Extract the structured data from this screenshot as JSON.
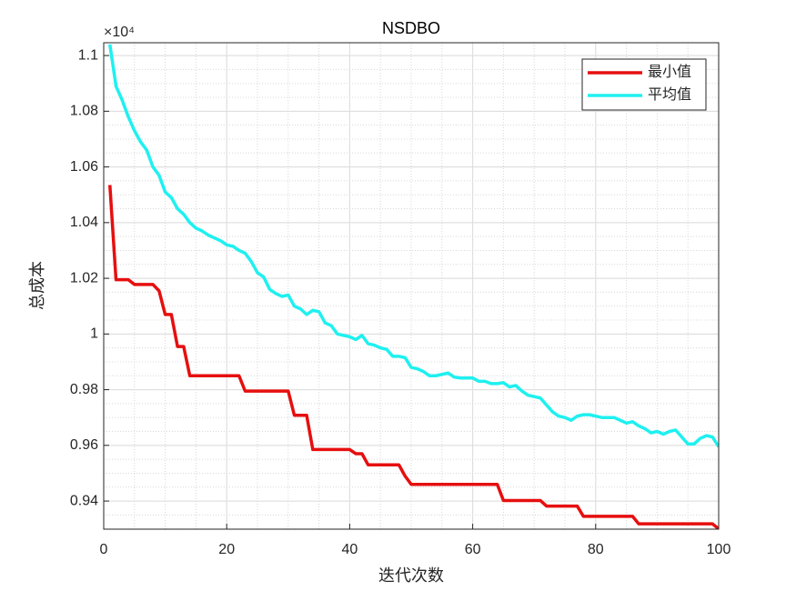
{
  "chart_data": {
    "type": "line",
    "title": "NSDBO",
    "xlabel": "迭代次数",
    "ylabel": "总成本",
    "y_multiplier": "×10⁴",
    "x": [
      1,
      2,
      3,
      4,
      5,
      6,
      7,
      8,
      9,
      10,
      11,
      12,
      13,
      14,
      15,
      16,
      17,
      18,
      19,
      20,
      21,
      22,
      23,
      24,
      25,
      26,
      27,
      28,
      29,
      30,
      31,
      32,
      33,
      34,
      35,
      36,
      37,
      38,
      39,
      40,
      41,
      42,
      43,
      44,
      45,
      46,
      47,
      48,
      49,
      50,
      51,
      52,
      53,
      54,
      55,
      56,
      57,
      58,
      59,
      60,
      61,
      62,
      63,
      64,
      65,
      66,
      67,
      68,
      69,
      70,
      71,
      72,
      73,
      74,
      75,
      76,
      77,
      78,
      79,
      80,
      81,
      82,
      83,
      84,
      85,
      86,
      87,
      88,
      89,
      90,
      91,
      92,
      93,
      94,
      95,
      96,
      97,
      98,
      99,
      100
    ],
    "series": [
      {
        "name": "最小值",
        "color": "#e60f0f",
        "values": [
          10535,
          10195,
          10195,
          10195,
          10178,
          10178,
          10178,
          10178,
          10155,
          10070,
          10070,
          9955,
          9955,
          9850,
          9850,
          9850,
          9850,
          9850,
          9850,
          9850,
          9850,
          9850,
          9795,
          9795,
          9795,
          9795,
          9795,
          9795,
          9795,
          9795,
          9708,
          9708,
          9708,
          9585,
          9585,
          9585,
          9585,
          9585,
          9585,
          9585,
          9570,
          9570,
          9530,
          9530,
          9530,
          9530,
          9530,
          9530,
          9490,
          9460,
          9460,
          9460,
          9460,
          9460,
          9460,
          9460,
          9460,
          9460,
          9460,
          9460,
          9460,
          9460,
          9460,
          9460,
          9402,
          9402,
          9402,
          9402,
          9402,
          9402,
          9402,
          9382,
          9382,
          9382,
          9382,
          9382,
          9382,
          9345,
          9345,
          9345,
          9345,
          9345,
          9345,
          9345,
          9345,
          9345,
          9318,
          9318,
          9318,
          9318,
          9318,
          9318,
          9318,
          9318,
          9318,
          9318,
          9318,
          9318,
          9318,
          9300
        ]
      },
      {
        "name": "平均值",
        "color": "#1ff0f0",
        "values": [
          11040,
          10890,
          10840,
          10780,
          10730,
          10690,
          10660,
          10600,
          10570,
          10510,
          10490,
          10450,
          10430,
          10400,
          10380,
          10370,
          10355,
          10345,
          10335,
          10320,
          10315,
          10300,
          10290,
          10260,
          10220,
          10205,
          10160,
          10145,
          10135,
          10140,
          10100,
          10090,
          10070,
          10085,
          10080,
          10040,
          10030,
          10000,
          9995,
          9990,
          9980,
          9995,
          9965,
          9960,
          9950,
          9945,
          9920,
          9920,
          9915,
          9880,
          9875,
          9865,
          9850,
          9850,
          9855,
          9860,
          9845,
          9842,
          9842,
          9842,
          9830,
          9830,
          9822,
          9822,
          9825,
          9810,
          9815,
          9795,
          9780,
          9775,
          9770,
          9745,
          9720,
          9705,
          9700,
          9690,
          9705,
          9710,
          9710,
          9705,
          9700,
          9700,
          9700,
          9690,
          9680,
          9685,
          9670,
          9660,
          9645,
          9650,
          9640,
          9650,
          9655,
          9630,
          9605,
          9605,
          9625,
          9635,
          9630,
          9595
        ]
      }
    ],
    "xlim": [
      0,
      100
    ],
    "xticks": [
      0,
      20,
      40,
      60,
      80,
      100
    ],
    "ylim": [
      9299,
      11046
    ],
    "yticks": [
      {
        "value": 9400,
        "label": "0.94"
      },
      {
        "value": 9600,
        "label": "0.96"
      },
      {
        "value": 9800,
        "label": "0.98"
      },
      {
        "value": 10000,
        "label": "1"
      },
      {
        "value": 10200,
        "label": "1.02"
      },
      {
        "value": 10400,
        "label": "1.04"
      },
      {
        "value": 10600,
        "label": "1.06"
      },
      {
        "value": 10800,
        "label": "1.08"
      },
      {
        "value": 11000,
        "label": "1.1"
      }
    ],
    "grid": true,
    "minor_grid": true,
    "legend": "upper-right"
  }
}
